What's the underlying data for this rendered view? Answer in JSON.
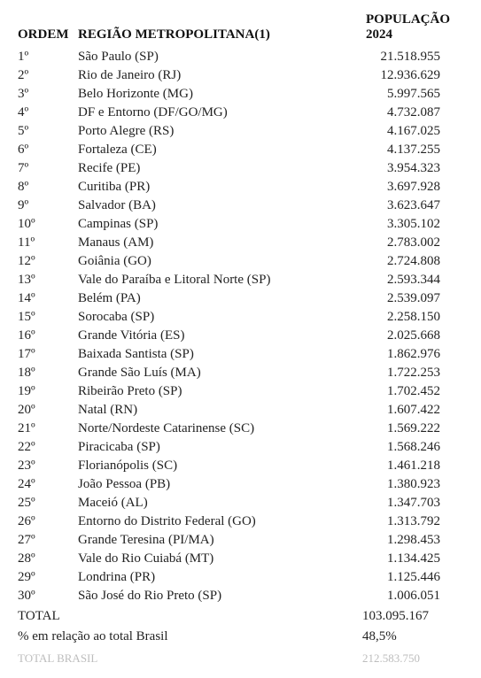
{
  "headers": {
    "ordem": "ORDEM",
    "regiao": "REGIÃO METROPOLITANA(1)",
    "pop": "POPULAÇÃO 2024"
  },
  "rows": [
    {
      "ordem": "1º",
      "regiao": "São Paulo (SP)",
      "pop": "21.518.955"
    },
    {
      "ordem": "2º",
      "regiao": "Rio de Janeiro (RJ)",
      "pop": "12.936.629"
    },
    {
      "ordem": "3º",
      "regiao": "Belo Horizonte (MG)",
      "pop": "5.997.565"
    },
    {
      "ordem": "4º",
      "regiao": "DF e Entorno (DF/GO/MG)",
      "pop": "4.732.087"
    },
    {
      "ordem": "5º",
      "regiao": "Porto Alegre (RS)",
      "pop": "4.167.025"
    },
    {
      "ordem": "6º",
      "regiao": "Fortaleza (CE)",
      "pop": "4.137.255"
    },
    {
      "ordem": "7º",
      "regiao": "Recife (PE)",
      "pop": "3.954.323"
    },
    {
      "ordem": "8º",
      "regiao": "Curitiba (PR)",
      "pop": "3.697.928"
    },
    {
      "ordem": "9º",
      "regiao": "Salvador (BA)",
      "pop": "3.623.647"
    },
    {
      "ordem": "10º",
      "regiao": "Campinas (SP)",
      "pop": "3.305.102"
    },
    {
      "ordem": "11º",
      "regiao": "Manaus (AM)",
      "pop": "2.783.002"
    },
    {
      "ordem": "12º",
      "regiao": "Goiânia (GO)",
      "pop": "2.724.808"
    },
    {
      "ordem": "13º",
      "regiao": "Vale do Paraíba e Litoral Norte (SP)",
      "pop": "2.593.344"
    },
    {
      "ordem": "14º",
      "regiao": "Belém (PA)",
      "pop": "2.539.097"
    },
    {
      "ordem": "15º",
      "regiao": "Sorocaba (SP)",
      "pop": "2.258.150"
    },
    {
      "ordem": "16º",
      "regiao": "Grande Vitória (ES)",
      "pop": "2.025.668"
    },
    {
      "ordem": "17º",
      "regiao": "Baixada Santista (SP)",
      "pop": "1.862.976"
    },
    {
      "ordem": "18º",
      "regiao": "Grande São Luís (MA)",
      "pop": "1.722.253"
    },
    {
      "ordem": "19º",
      "regiao": "Ribeirão Preto (SP)",
      "pop": "1.702.452"
    },
    {
      "ordem": "20º",
      "regiao": "Natal (RN)",
      "pop": "1.607.422"
    },
    {
      "ordem": "21º",
      "regiao": "Norte/Nordeste Catarinense (SC)",
      "pop": "1.569.222"
    },
    {
      "ordem": "22º",
      "regiao": "Piracicaba (SP)",
      "pop": "1.568.246"
    },
    {
      "ordem": "23º",
      "regiao": "Florianópolis (SC)",
      "pop": "1.461.218"
    },
    {
      "ordem": "24º",
      "regiao": "João Pessoa (PB)",
      "pop": "1.380.923"
    },
    {
      "ordem": "25º",
      "regiao": "Maceió (AL)",
      "pop": "1.347.703"
    },
    {
      "ordem": "26º",
      "regiao": "Entorno do Distrito Federal (GO)",
      "pop": "1.313.792"
    },
    {
      "ordem": "27º",
      "regiao": "Grande Teresina (PI/MA)",
      "pop": "1.298.453"
    },
    {
      "ordem": "28º",
      "regiao": "Vale do Rio Cuiabá (MT)",
      "pop": "1.134.425"
    },
    {
      "ordem": "29º",
      "regiao": "Londrina (PR)",
      "pop": "1.125.446"
    },
    {
      "ordem": "30º",
      "regiao": "São José do Rio Preto (SP)",
      "pop": "1.006.051"
    }
  ],
  "summary": {
    "total_label": "TOTAL",
    "total_value": "103.095.167",
    "pct_label": "% em relação ao total Brasil",
    "pct_value": "48,5%",
    "brasil_label": "TOTAL BRASIL",
    "brasil_value": "212.583.750"
  },
  "style": {
    "text_color": "#222222",
    "muted_color": "#bdbdbd",
    "font_family": "Times New Roman",
    "base_fontsize": 15
  }
}
